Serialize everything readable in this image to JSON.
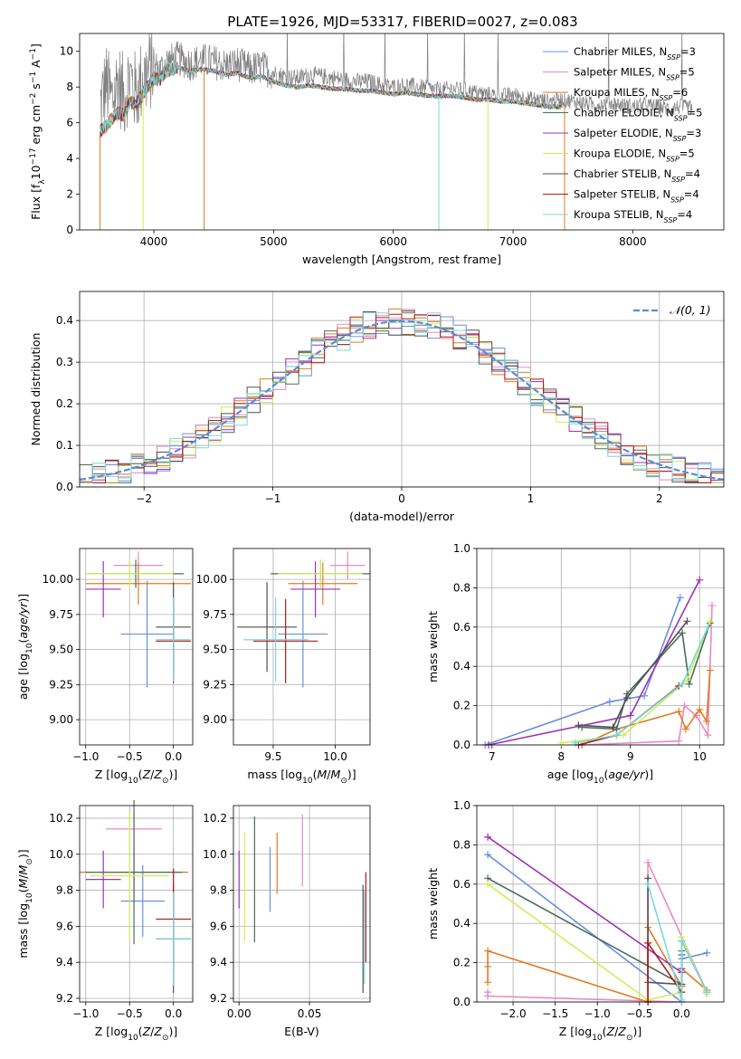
{
  "figure": {
    "title": "PLATE=1926, MJD=53317, FIBERID=0027, z=0.083"
  },
  "models": [
    {
      "name": "Chabrier MILES",
      "nssp": "3",
      "color": "#6a8fdf"
    },
    {
      "name": "Salpeter MILES",
      "nssp": "5",
      "color": "#e98ac0"
    },
    {
      "name": "Kroupa MILES",
      "nssp": "6",
      "color": "#e07b24"
    },
    {
      "name": "Chabrier ELODIE",
      "nssp": "5",
      "color": "#4b6c5c"
    },
    {
      "name": "Salpeter ELODIE",
      "nssp": "3",
      "color": "#9c33b6"
    },
    {
      "name": "Kroupa ELODIE",
      "nssp": "5",
      "color": "#cfee58"
    },
    {
      "name": "Chabrier STELIB",
      "nssp": "4",
      "color": "#505050"
    },
    {
      "name": "Salpeter STELIB",
      "nssp": "4",
      "color": "#b01818"
    },
    {
      "name": "Kroupa STELIB",
      "nssp": "4",
      "color": "#78d8e0"
    }
  ],
  "chart_data": [
    {
      "id": "spectrum",
      "type": "line",
      "xlabel": "wavelength [Angstrom, rest frame]",
      "ylabel": "Flux [fλ10⁻¹⁷ erg cm⁻² s⁻¹ A⁻¹]",
      "xlim": [
        3380,
        8760
      ],
      "ylim": [
        0,
        11
      ],
      "xticks": [
        4000,
        5000,
        6000,
        7000,
        8000
      ],
      "yticks": [
        0,
        2,
        4,
        6,
        8,
        10
      ],
      "grid": false,
      "legend": "right",
      "data_trace": [
        [
          3550,
          6.8
        ],
        [
          3600,
          8.2
        ],
        [
          3650,
          7.2
        ],
        [
          3700,
          8.4
        ],
        [
          3750,
          7.4
        ],
        [
          3800,
          8.6
        ],
        [
          3850,
          7.6
        ],
        [
          3900,
          8.4
        ],
        [
          3950,
          8.8
        ],
        [
          4000,
          9.2
        ],
        [
          4050,
          8.9
        ],
        [
          4100,
          9.4
        ],
        [
          4200,
          9.6
        ],
        [
          4300,
          9.3
        ],
        [
          4400,
          9.5
        ],
        [
          4500,
          9.4
        ],
        [
          4600,
          9.2
        ],
        [
          4700,
          9.3
        ],
        [
          4800,
          9.0
        ],
        [
          4900,
          9.1
        ],
        [
          5000,
          8.8
        ],
        [
          5100,
          8.6
        ],
        [
          5200,
          8.5
        ],
        [
          5300,
          8.7
        ],
        [
          5400,
          8.6
        ],
        [
          5500,
          8.5
        ],
        [
          5600,
          8.4
        ],
        [
          5700,
          8.3
        ],
        [
          5800,
          8.3
        ],
        [
          5900,
          8.1
        ],
        [
          6000,
          8.0
        ],
        [
          6100,
          8.1
        ],
        [
          6200,
          8.0
        ],
        [
          6300,
          7.9
        ],
        [
          6400,
          7.8
        ],
        [
          6500,
          7.9
        ],
        [
          6600,
          7.8
        ],
        [
          6700,
          7.7
        ],
        [
          6800,
          7.6
        ],
        [
          6900,
          7.5
        ],
        [
          7000,
          7.6
        ],
        [
          7100,
          7.4
        ],
        [
          7200,
          7.3
        ],
        [
          7300,
          7.2
        ],
        [
          7400,
          7.3
        ],
        [
          7500,
          7.2
        ],
        [
          7600,
          7.1
        ],
        [
          7700,
          7.0
        ],
        [
          7800,
          7.1
        ],
        [
          7900,
          7.0
        ],
        [
          8000,
          6.9
        ],
        [
          8100,
          7.0
        ],
        [
          8200,
          6.9
        ],
        [
          8300,
          6.8
        ],
        [
          8400,
          6.9
        ],
        [
          8500,
          6.8
        ]
      ],
      "model_trace": [
        [
          3550,
          5.5
        ],
        [
          3600,
          5.8
        ],
        [
          3650,
          6.2
        ],
        [
          3700,
          6.6
        ],
        [
          3750,
          6.4
        ],
        [
          3800,
          7.2
        ],
        [
          3850,
          7.0
        ],
        [
          3900,
          7.6
        ],
        [
          3950,
          8.0
        ],
        [
          4000,
          8.5
        ],
        [
          4050,
          8.4
        ],
        [
          4100,
          8.9
        ],
        [
          4200,
          9.1
        ],
        [
          4300,
          8.9
        ],
        [
          4400,
          9.0
        ],
        [
          4500,
          8.9
        ],
        [
          4600,
          8.7
        ],
        [
          4700,
          8.8
        ],
        [
          4800,
          8.5
        ],
        [
          4900,
          8.6
        ],
        [
          5000,
          8.3
        ],
        [
          5100,
          8.1
        ],
        [
          5200,
          8.0
        ],
        [
          5300,
          8.1
        ],
        [
          5400,
          8.0
        ],
        [
          5500,
          7.9
        ],
        [
          5600,
          7.9
        ],
        [
          5700,
          7.8
        ],
        [
          5800,
          7.8
        ],
        [
          5900,
          7.7
        ],
        [
          6000,
          7.6
        ],
        [
          6100,
          7.7
        ],
        [
          6200,
          7.6
        ],
        [
          6300,
          7.5
        ],
        [
          6400,
          7.5
        ],
        [
          6500,
          7.5
        ],
        [
          6600,
          7.4
        ],
        [
          6700,
          7.3
        ],
        [
          6800,
          7.3
        ],
        [
          6900,
          7.2
        ],
        [
          7000,
          7.2
        ],
        [
          7100,
          7.1
        ],
        [
          7200,
          7.0
        ],
        [
          7300,
          6.9
        ],
        [
          7400,
          6.9
        ]
      ],
      "dropouts": [
        [
          3550,
          "#e07b24"
        ],
        [
          3910,
          "#cfee58"
        ],
        [
          4420,
          "#e07b24"
        ],
        [
          6380,
          "#78d8e0"
        ],
        [
          6790,
          "#cfee58"
        ],
        [
          7430,
          "#e07b24"
        ]
      ]
    },
    {
      "id": "residuals",
      "type": "line",
      "xlabel": "(data-model)/error",
      "ylabel": "Normed distribution",
      "xlim": [
        -2.5,
        2.5
      ],
      "ylim": [
        0,
        0.47
      ],
      "xticks": [
        -2,
        -1,
        0,
        1,
        2
      ],
      "yticks": [
        0.0,
        0.1,
        0.2,
        0.3,
        0.4
      ],
      "grid": true,
      "legend": "top-right",
      "reference_label": "𝒩(0, 1)",
      "reference_color": "#5b8bd6",
      "bin_width": 0.1
    },
    {
      "id": "age-vs-Z",
      "type": "scatter",
      "xlabel": "Z [log10(Z/Z⊙)]",
      "ylabel": "age [log10(age/yr)]",
      "xlim": [
        -1.07,
        0.22
      ],
      "ylim": [
        8.82,
        10.22
      ],
      "xticks": [
        -1.0,
        -0.5,
        0.0
      ],
      "yticks": [
        9.0,
        9.25,
        9.5,
        9.75,
        10.0
      ],
      "grid": true,
      "points": [
        {
          "x": -0.3,
          "xerr": 0.3,
          "y": 9.61,
          "yerr": 0.38,
          "c": "#6a8fdf"
        },
        {
          "x": -0.4,
          "xerr": 0.28,
          "y": 10.1,
          "yerr": 0.1,
          "c": "#e98ac0"
        },
        {
          "x": -0.4,
          "xerr": 0.6,
          "y": 9.97,
          "yerr": 0.15,
          "c": "#e07b24"
        },
        {
          "x": -0.43,
          "xerr": 0.55,
          "y": 10.04,
          "yerr": 0.1,
          "c": "#4b6c5c"
        },
        {
          "x": -0.8,
          "xerr": 0.2,
          "y": 9.93,
          "yerr": 0.2,
          "c": "#9c33b6"
        },
        {
          "x": -0.5,
          "xerr": 0.5,
          "y": 10.04,
          "yerr": 0.1,
          "c": "#cfee58"
        },
        {
          "x": 0.0,
          "xerr": 0.2,
          "y": 9.66,
          "yerr": 0.32,
          "c": "#505050"
        },
        {
          "x": 0.0,
          "xerr": 0.2,
          "y": 9.56,
          "yerr": 0.3,
          "c": "#b01818"
        },
        {
          "x": 0.0,
          "xerr": 0.2,
          "y": 9.57,
          "yerr": 0.3,
          "c": "#78d8e0"
        }
      ]
    },
    {
      "id": "age-vs-mass",
      "type": "scatter",
      "xlabel": "mass [log10(M/M⊙)]",
      "ylabel": "",
      "xlim": [
        9.18,
        10.28
      ],
      "ylim": [
        8.82,
        10.22
      ],
      "xticks": [
        9.5,
        10.0
      ],
      "yticks": [
        9.0,
        9.25,
        9.5,
        9.75,
        10.0
      ],
      "grid": true,
      "points": [
        {
          "x": 9.74,
          "xerr": 0.2,
          "y": 9.61,
          "yerr": 0.38,
          "c": "#6a8fdf"
        },
        {
          "x": 10.1,
          "xerr": 0.14,
          "y": 10.1,
          "yerr": 0.1,
          "c": "#e98ac0"
        },
        {
          "x": 9.9,
          "xerr": 0.28,
          "y": 9.97,
          "yerr": 0.15,
          "c": "#e07b24"
        },
        {
          "x": 9.88,
          "xerr": 0.4,
          "y": 10.04,
          "yerr": 0.1,
          "c": "#4b6c5c"
        },
        {
          "x": 9.84,
          "xerr": 0.2,
          "y": 9.93,
          "yerr": 0.2,
          "c": "#9c33b6"
        },
        {
          "x": 9.88,
          "xerr": 0.34,
          "y": 10.04,
          "yerr": 0.1,
          "c": "#cfee58"
        },
        {
          "x": 9.45,
          "xerr": 0.24,
          "y": 9.66,
          "yerr": 0.32,
          "c": "#505050"
        },
        {
          "x": 9.6,
          "xerr": 0.26,
          "y": 9.56,
          "yerr": 0.3,
          "c": "#b01818"
        },
        {
          "x": 9.52,
          "xerr": 0.26,
          "y": 9.57,
          "yerr": 0.3,
          "c": "#78d8e0"
        }
      ]
    },
    {
      "id": "weight-vs-age",
      "type": "line",
      "xlabel": "age [log10(age/yr)]",
      "ylabel": "mass weight",
      "xlim": [
        6.78,
        10.35
      ],
      "ylim": [
        0,
        1
      ],
      "xticks": [
        7,
        8,
        9,
        10
      ],
      "yticks": [
        0.0,
        0.2,
        0.4,
        0.6,
        0.8,
        1.0
      ],
      "grid": true,
      "series": [
        {
          "c": "#6a8fdf",
          "x": [
            6.9,
            8.7,
            9.2,
            9.72
          ],
          "y": [
            0.0,
            0.22,
            0.25,
            0.75
          ]
        },
        {
          "c": "#e98ac0",
          "x": [
            8.3,
            9.7,
            9.78,
            9.95,
            10.12,
            10.18
          ],
          "y": [
            0.0,
            0.02,
            0.2,
            0.15,
            0.05,
            0.71
          ]
        },
        {
          "c": "#e07b24",
          "x": [
            8.3,
            8.8,
            9.7,
            9.8,
            10.0,
            10.1,
            10.15
          ],
          "y": [
            0.0,
            0.08,
            0.17,
            0.08,
            0.18,
            0.12,
            0.38
          ]
        },
        {
          "c": "#4b6c5c",
          "x": [
            8.3,
            8.8,
            8.95,
            9.75,
            9.85,
            10.15
          ],
          "y": [
            0.09,
            0.08,
            0.26,
            0.57,
            0.31,
            0.62
          ]
        },
        {
          "c": "#9c33b6",
          "x": [
            6.95,
            9.0,
            10.0
          ],
          "y": [
            0.0,
            0.15,
            0.84
          ]
        },
        {
          "c": "#cfee58",
          "x": [
            8.0,
            8.9,
            9.82,
            10.15
          ],
          "y": [
            0.01,
            0.05,
            0.33,
            0.63
          ]
        },
        {
          "c": "#505050",
          "x": [
            8.25,
            8.75,
            8.95,
            9.82
          ],
          "y": [
            0.1,
            0.09,
            0.24,
            0.63
          ]
        },
        {
          "c": "#b01818",
          "x": [
            8.25,
            8.8,
            9.7
          ],
          "y": [
            0.0,
            0.05,
            0.3
          ]
        },
        {
          "c": "#78d8e0",
          "x": [
            8.2,
            8.8,
            9.75,
            10.12
          ],
          "y": [
            0.01,
            0.05,
            0.31,
            0.6
          ]
        }
      ]
    },
    {
      "id": "mass-vs-Z",
      "type": "scatter",
      "xlabel": "Z [log10(Z/Z⊙)]",
      "ylabel": "mass [log10(M/M⊙)]",
      "xlim": [
        -1.07,
        0.22
      ],
      "ylim": [
        9.18,
        10.27
      ],
      "xticks": [
        -1.0,
        -0.5,
        0.0
      ],
      "yticks": [
        9.2,
        9.4,
        9.6,
        9.8,
        10.0,
        10.2
      ],
      "grid": true,
      "points": [
        {
          "x": -0.35,
          "xerr": 0.25,
          "y": 9.74,
          "yerr": 0.2,
          "c": "#6a8fdf"
        },
        {
          "x": -0.45,
          "xerr": 0.32,
          "y": 10.14,
          "yerr": 0.08,
          "c": "#e98ac0"
        },
        {
          "x": -0.45,
          "xerr": 0.62,
          "y": 9.9,
          "yerr": 0.14,
          "c": "#e07b24"
        },
        {
          "x": -0.45,
          "xerr": 0.55,
          "y": 9.9,
          "yerr": 0.4,
          "c": "#4b6c5c"
        },
        {
          "x": -0.8,
          "xerr": 0.2,
          "y": 9.86,
          "yerr": 0.16,
          "c": "#9c33b6"
        },
        {
          "x": -0.5,
          "xerr": 0.45,
          "y": 9.88,
          "yerr": 0.36,
          "c": "#cfee58"
        },
        {
          "x": 0.0,
          "xerr": 0.2,
          "y": 9.53,
          "yerr": 0.3,
          "c": "#505050"
        },
        {
          "x": 0.0,
          "xerr": 0.2,
          "y": 9.64,
          "yerr": 0.28,
          "c": "#b01818"
        },
        {
          "x": 0.0,
          "xerr": 0.2,
          "y": 9.53,
          "yerr": 0.26,
          "c": "#78d8e0"
        }
      ]
    },
    {
      "id": "mass-vs-ebv",
      "type": "scatter",
      "xlabel": "E(B-V)",
      "ylabel": "",
      "xlim": [
        -0.004,
        0.093
      ],
      "ylim": [
        9.18,
        10.27
      ],
      "xticks": [
        0.0,
        0.05
      ],
      "yticks": [
        9.2,
        9.4,
        9.6,
        9.8,
        10.0,
        10.2
      ],
      "grid": true,
      "points": [
        {
          "x": 0.022,
          "y": 9.86,
          "yerr": 0.18,
          "c": "#6a8fdf"
        },
        {
          "x": 0.045,
          "y": 10.02,
          "yerr": 0.2,
          "c": "#e98ac0"
        },
        {
          "x": 0.027,
          "y": 9.95,
          "yerr": 0.17,
          "c": "#e07b24"
        },
        {
          "x": 0.011,
          "y": 9.86,
          "yerr": 0.35,
          "c": "#4b6c5c"
        },
        {
          "x": 0.0,
          "y": 9.86,
          "yerr": 0.16,
          "c": "#9c33b6"
        },
        {
          "x": 0.004,
          "y": 9.82,
          "yerr": 0.3,
          "c": "#cfee58"
        },
        {
          "x": 0.088,
          "y": 9.53,
          "yerr": 0.3,
          "c": "#505050"
        },
        {
          "x": 0.09,
          "y": 9.65,
          "yerr": 0.25,
          "c": "#b01818"
        },
        {
          "x": 0.089,
          "y": 9.54,
          "yerr": 0.26,
          "c": "#78d8e0"
        }
      ]
    },
    {
      "id": "weight-vs-Z",
      "type": "line",
      "xlabel": "Z [log10(Z/Z⊙)]",
      "ylabel": "mass weight",
      "xlim": [
        -2.43,
        0.5
      ],
      "ylim": [
        0,
        1
      ],
      "xticks": [
        -2.0,
        -1.5,
        -1.0,
        -0.5,
        0.0
      ],
      "yticks": [
        0.0,
        0.2,
        0.4,
        0.6,
        0.8,
        1.0
      ],
      "grid": true,
      "series": [
        {
          "c": "#6a8fdf",
          "x": [
            -2.3,
            0.0,
            0.0,
            0.3
          ],
          "y": [
            0.75,
            0.0,
            0.22,
            0.25
          ]
        },
        {
          "c": "#e98ac0",
          "x": [
            -2.3,
            -2.3,
            0.0,
            -0.4,
            -0.4,
            0.3
          ],
          "y": [
            0.05,
            0.03,
            0.0,
            0.0,
            0.71,
            0.05
          ]
        },
        {
          "c": "#e07b24",
          "x": [
            -2.3,
            -2.3,
            -2.3,
            -0.4,
            -0.4,
            0.0,
            0.0,
            0.3
          ],
          "y": [
            0.1,
            0.18,
            0.26,
            0.0,
            0.38,
            0.08,
            0.17,
            0.06
          ]
        },
        {
          "c": "#4b6c5c",
          "x": [
            -2.3,
            0.0,
            0.0,
            0.0,
            0.3
          ],
          "y": [
            0.63,
            0.09,
            0.26,
            0.31,
            0.05
          ]
        },
        {
          "c": "#9c33b6",
          "x": [
            -2.3,
            0.0,
            0.0
          ],
          "y": [
            0.84,
            0.15,
            0.17
          ]
        },
        {
          "c": "#cfee58",
          "x": [
            -2.3,
            -0.4,
            0.0,
            0.0,
            0.3
          ],
          "y": [
            0.6,
            0.01,
            0.05,
            0.33,
            0.04
          ]
        },
        {
          "c": "#505050",
          "x": [
            -0.4,
            -0.4,
            0.0,
            0.0
          ],
          "y": [
            0.63,
            0.1,
            0.09,
            0.24
          ]
        },
        {
          "c": "#b01818",
          "x": [
            -0.4,
            -0.4,
            0.0
          ],
          "y": [
            0.0,
            0.3,
            0.05
          ]
        },
        {
          "c": "#78d8e0",
          "x": [
            -0.4,
            0.0,
            0.0,
            0.3
          ],
          "y": [
            0.6,
            0.01,
            0.31,
            0.05
          ]
        }
      ]
    }
  ]
}
